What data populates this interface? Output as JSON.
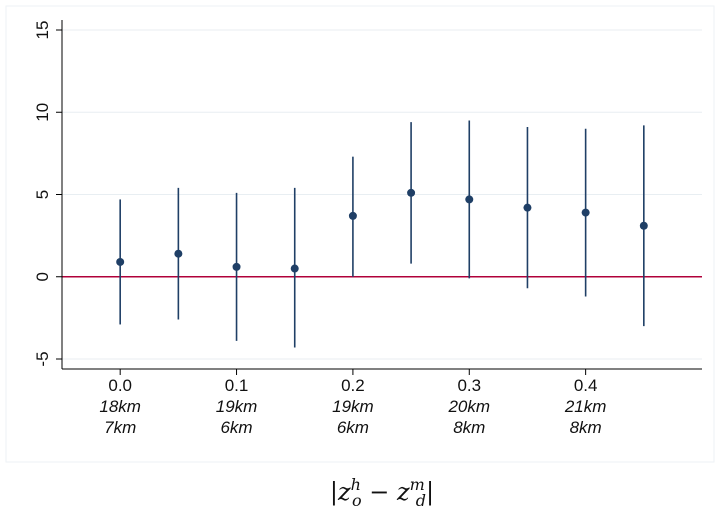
{
  "chart_data": {
    "type": "scatter",
    "title": "",
    "xlabel": "|z_o^h − z_d^m|",
    "ylabel": "",
    "ylim": [
      -5,
      15
    ],
    "xlim": [
      -0.05,
      0.5
    ],
    "yticks": [
      -5,
      0,
      5,
      10,
      15
    ],
    "ytick_labels": [
      "-5",
      "0",
      "5",
      "10",
      "15"
    ],
    "xticks": [
      {
        "value": 0.0,
        "lines": [
          "0.0",
          "18km",
          "7km"
        ]
      },
      {
        "value": 0.1,
        "lines": [
          "0.1",
          "19km",
          "6km"
        ]
      },
      {
        "value": 0.2,
        "lines": [
          "0.2",
          "19km",
          "6km"
        ]
      },
      {
        "value": 0.3,
        "lines": [
          "0.3",
          "20km",
          "8km"
        ]
      },
      {
        "value": 0.4,
        "lines": [
          "0.4",
          "21km",
          "8km"
        ]
      }
    ],
    "points": [
      {
        "x": 0.0,
        "y": 0.9,
        "lo": -2.9,
        "hi": 4.7
      },
      {
        "x": 0.05,
        "y": 1.4,
        "lo": -2.6,
        "hi": 5.4
      },
      {
        "x": 0.1,
        "y": 0.6,
        "lo": -3.9,
        "hi": 5.1
      },
      {
        "x": 0.15,
        "y": 0.5,
        "lo": -4.3,
        "hi": 5.4
      },
      {
        "x": 0.2,
        "y": 3.7,
        "lo": 0.0,
        "hi": 7.3
      },
      {
        "x": 0.25,
        "y": 5.1,
        "lo": 0.8,
        "hi": 9.4
      },
      {
        "x": 0.3,
        "y": 4.7,
        "lo": -0.1,
        "hi": 9.5
      },
      {
        "x": 0.35,
        "y": 4.2,
        "lo": -0.7,
        "hi": 9.1
      },
      {
        "x": 0.4,
        "y": 3.9,
        "lo": -1.2,
        "hi": 9.0
      },
      {
        "x": 0.45,
        "y": 3.1,
        "lo": -3.0,
        "hi": 9.2
      }
    ],
    "reference_line": {
      "y": 0,
      "color": "#b0003a"
    },
    "marker_color": "#1f3f66",
    "grid": true,
    "grid_color": "#e8eef2"
  }
}
